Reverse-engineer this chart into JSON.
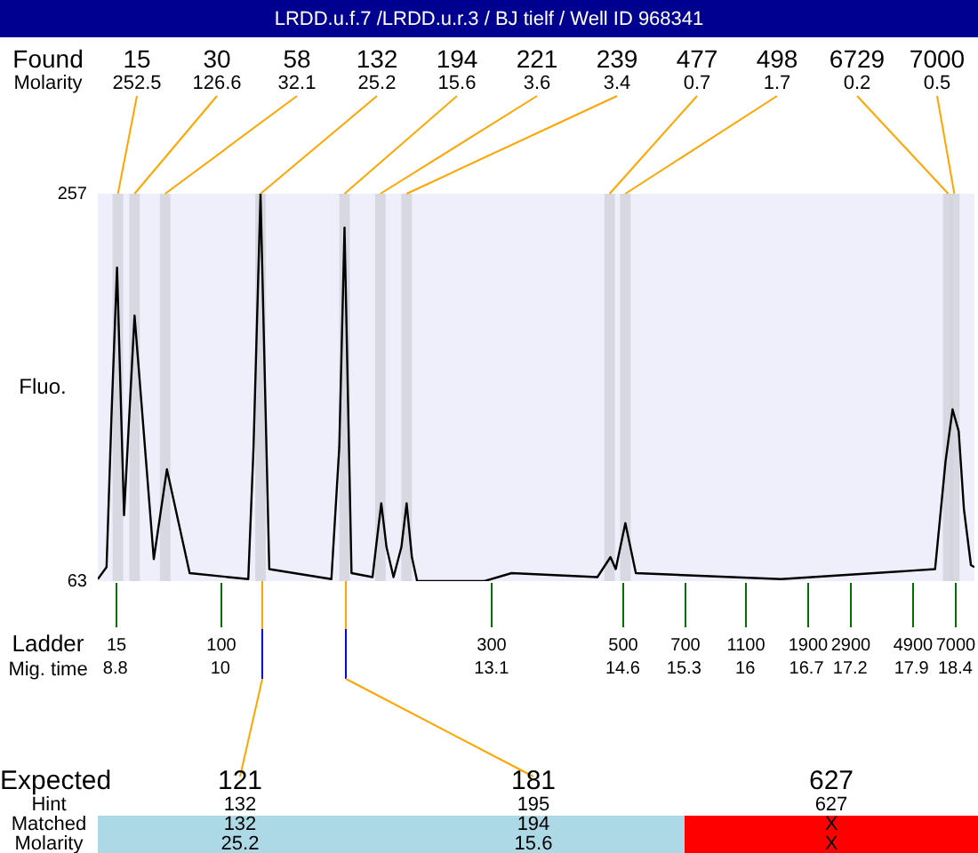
{
  "chart_data": [
    {
      "type": "line",
      "title": "LRDD.u.f.7 /LRDD.u.r.3 / BJ tielf / Well ID 968341",
      "ylabel": "Fluo.",
      "xlabel": "Mig. time",
      "x": [
        8.6,
        8.7,
        8.76,
        8.82,
        8.9,
        9.02,
        9.24,
        9.39,
        9.65,
        10.32,
        10.38,
        10.46,
        10.56,
        11.27,
        11.36,
        11.42,
        11.5,
        11.74,
        11.78,
        11.84,
        11.9,
        11.98,
        12.07,
        12.13,
        12.19,
        12.25,
        13.02,
        13.33,
        14.31,
        14.46,
        14.52,
        14.63,
        14.75,
        16.41,
        18.17,
        18.29,
        18.37,
        18.44,
        18.5,
        18.58,
        18.62
      ],
      "series": [
        {
          "color": "#000000",
          "values": [
            64,
            70,
            150,
            220,
            96,
            196,
            74,
            119,
            67,
            64,
            130,
            257,
            69,
            64,
            130,
            240,
            67,
            65,
            80,
            102,
            80,
            65,
            80,
            102,
            75,
            63,
            63,
            67,
            65,
            75,
            69,
            92,
            67,
            64,
            69,
            123,
            149,
            138,
            99,
            71,
            70
          ]
        }
      ],
      "xlim": [
        8.6,
        18.62
      ],
      "ylim": [
        63,
        257
      ],
      "yticks": [
        63,
        257
      ],
      "xticks": [
        8.8,
        10,
        13.1,
        14.6,
        15.3,
        16,
        16.7,
        17.2,
        17.9,
        18.4
      ],
      "grid": false,
      "legend": false,
      "bands": [
        {
          "axis": "x",
          "from": 8.77,
          "to": 8.89,
          "color": "#d3d3de"
        },
        {
          "axis": "x",
          "from": 8.96,
          "to": 9.08,
          "color": "#d3d3de"
        },
        {
          "axis": "x",
          "from": 9.31,
          "to": 9.43,
          "color": "#d3d3de"
        },
        {
          "axis": "x",
          "from": 10.4,
          "to": 10.52,
          "color": "#d3d3de"
        },
        {
          "axis": "x",
          "from": 11.36,
          "to": 11.48,
          "color": "#d3d3de"
        },
        {
          "axis": "x",
          "from": 11.77,
          "to": 11.89,
          "color": "#d3d3de"
        },
        {
          "axis": "x",
          "from": 12.07,
          "to": 12.19,
          "color": "#d3d3de"
        },
        {
          "axis": "x",
          "from": 14.39,
          "to": 14.51,
          "color": "#d3d3de"
        },
        {
          "axis": "x",
          "from": 14.57,
          "to": 14.69,
          "color": "#d3d3de"
        },
        {
          "axis": "x",
          "from": 18.26,
          "to": 18.38,
          "color": "#d3d3de"
        },
        {
          "axis": "x",
          "from": 18.33,
          "to": 18.45,
          "color": "#d3d3de"
        }
      ],
      "annotations": [
        "Found",
        "Molarity",
        "Ladder",
        "252.5",
        "126.6",
        "32.1",
        "25.2",
        "15.6",
        "3.6",
        "3.4",
        "0.7",
        "1.7",
        "0.2",
        "0.5",
        "15",
        "100",
        "300",
        "500",
        "700",
        "1100",
        "1900",
        "2900",
        "4900",
        "7000",
        {
          "text": "15",
          "x": 8.83,
          "y": 257
        },
        {
          "text": "30",
          "x": 9.02,
          "y": 257
        },
        {
          "text": "58",
          "x": 9.37,
          "y": 257
        },
        {
          "text": "132",
          "x": 10.46,
          "y": 257
        },
        {
          "text": "194",
          "x": 11.42,
          "y": 257
        },
        {
          "text": "221",
          "x": 11.83,
          "y": 257
        },
        {
          "text": "239",
          "x": 12.13,
          "y": 257
        },
        {
          "text": "477",
          "x": 14.45,
          "y": 257
        },
        {
          "text": "498",
          "x": 14.63,
          "y": 257
        },
        {
          "text": "6729",
          "x": 18.32,
          "y": 257
        },
        {
          "text": "7000",
          "x": 18.39,
          "y": 257
        }
      ]
    },
    {
      "type": "other",
      "y_categories": [
        "Expected",
        "Hint",
        "Matched",
        "Molarity"
      ],
      "cell_labels": [
        [
          "121",
          "181",
          "627"
        ],
        [
          "132",
          "195",
          "627"
        ],
        [
          "132",
          "194",
          "X"
        ],
        [
          "25.2",
          "15.6",
          "X"
        ]
      ],
      "colors": [
        "#add8e6",
        "#add8e6",
        "#ff0000"
      ]
    }
  ]
}
